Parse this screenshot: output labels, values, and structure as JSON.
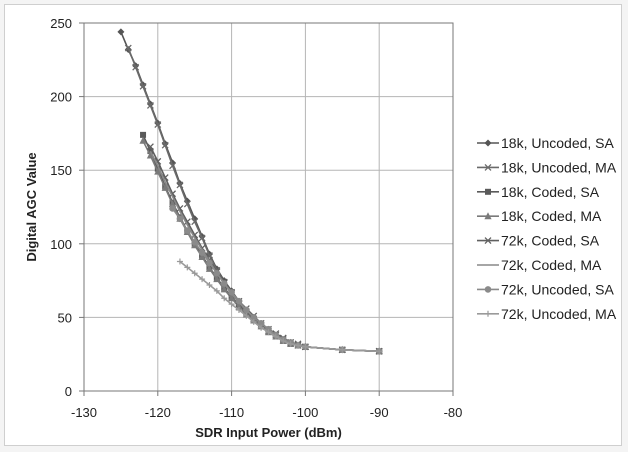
{
  "chart_data": {
    "type": "line",
    "title": "",
    "xlabel": "SDR Input Power (dBm)",
    "ylabel": "Digital AGC Value",
    "xlim": [
      -130,
      -80
    ],
    "ylim": [
      0,
      250
    ],
    "xticks": [
      -130,
      -120,
      -110,
      -100,
      -90,
      -80
    ],
    "yticks": [
      0,
      50,
      100,
      150,
      200,
      250
    ],
    "grid": true,
    "legend_position": "right",
    "series": [
      {
        "name": "18k, Uncoded, SA",
        "color": "#555555",
        "marker": "diamond",
        "x": [
          -125,
          -124,
          -123,
          -122,
          -121,
          -120,
          -119,
          -118,
          -117,
          -116,
          -115,
          -114,
          -113,
          -112,
          -111,
          -110,
          -109,
          -108,
          -107,
          -106,
          -105,
          -104,
          -103,
          -102,
          -101,
          -100,
          -95,
          -90
        ],
        "y": [
          244,
          232,
          221,
          208,
          195,
          182,
          168,
          155,
          141,
          129,
          117,
          105,
          93,
          83,
          75,
          68,
          61,
          55,
          50,
          45,
          41,
          38,
          35,
          33,
          31,
          30,
          28,
          27
        ]
      },
      {
        "name": "18k, Uncoded, MA",
        "color": "#6a6a6a",
        "marker": "x",
        "x": [
          -124,
          -123,
          -122,
          -121,
          -120,
          -119,
          -118,
          -117,
          -116,
          -115,
          -114,
          -113,
          -112,
          -111,
          -110,
          -109,
          -108,
          -107,
          -106,
          -105,
          -104,
          -103,
          -102,
          -101,
          -100,
          -95,
          -90
        ],
        "y": [
          233,
          220,
          207,
          194,
          181,
          167,
          153,
          140,
          127,
          115,
          104,
          92,
          82,
          74,
          67,
          60,
          54,
          49,
          45,
          41,
          38,
          35,
          33,
          31,
          30,
          28,
          27
        ]
      },
      {
        "name": "18k, Coded, SA",
        "color": "#5a5a5a",
        "marker": "square",
        "x": [
          -122,
          -121,
          -120,
          -119,
          -118,
          -117,
          -116,
          -115,
          -114,
          -113,
          -112,
          -111,
          -110,
          -109,
          -108,
          -107,
          -106,
          -105,
          -104,
          -103,
          -102,
          -101,
          -100,
          -95,
          -90
        ],
        "y": [
          174,
          163,
          151,
          139,
          128,
          118,
          109,
          100,
          92,
          84,
          77,
          70,
          64,
          58,
          53,
          48,
          44,
          40,
          37,
          34,
          32,
          31,
          30,
          28,
          27
        ]
      },
      {
        "name": "18k, Coded, MA",
        "color": "#7a7a7a",
        "marker": "triangle",
        "x": [
          -122,
          -121,
          -120,
          -119,
          -118,
          -117,
          -116,
          -115,
          -114,
          -113,
          -112,
          -111,
          -110,
          -109,
          -108,
          -107,
          -106,
          -105,
          -104,
          -103,
          -102,
          -101,
          -100,
          -95,
          -90
        ],
        "y": [
          170,
          160,
          149,
          138,
          127,
          117,
          108,
          99,
          91,
          83,
          76,
          69,
          63,
          57,
          52,
          48,
          44,
          40,
          37,
          34,
          32,
          31,
          30,
          28,
          27
        ]
      },
      {
        "name": "72k, Coded, SA",
        "color": "#606060",
        "marker": "x",
        "x": [
          -121,
          -120,
          -119,
          -118,
          -117,
          -116,
          -115,
          -114,
          -113,
          -112,
          -111,
          -110,
          -109,
          -108,
          -107,
          -106,
          -105,
          -104,
          -103,
          -102,
          -101,
          -100,
          -95,
          -90
        ],
        "y": [
          166,
          156,
          145,
          134,
          124,
          115,
          106,
          97,
          89,
          81,
          74,
          67,
          61,
          56,
          51,
          46,
          42,
          39,
          36,
          33,
          32,
          30,
          28,
          27
        ]
      },
      {
        "name": "72k, Coded, MA",
        "color": "#888888",
        "marker": "none",
        "x": [
          -121,
          -120,
          -119,
          -118,
          -117,
          -116,
          -115,
          -114,
          -113,
          -112,
          -111,
          -110,
          -109,
          -108,
          -107,
          -106,
          -105,
          -104,
          -103,
          -102,
          -101,
          -100,
          -95,
          -90
        ],
        "y": [
          163,
          153,
          142,
          132,
          122,
          113,
          104,
          96,
          88,
          80,
          73,
          66,
          60,
          55,
          50,
          46,
          42,
          38,
          35,
          33,
          31,
          30,
          28,
          27
        ]
      },
      {
        "name": "72k, Uncoded, SA",
        "color": "#8a8a8a",
        "marker": "circle",
        "x": [
          -118,
          -117,
          -116,
          -115,
          -114,
          -113,
          -112,
          -111,
          -110,
          -109,
          -108,
          -107,
          -106,
          -105,
          -104,
          -103,
          -102,
          -101,
          -100,
          -95,
          -90
        ],
        "y": [
          124,
          117,
          109,
          101,
          94,
          87,
          80,
          73,
          67,
          61,
          55,
          50,
          46,
          42,
          38,
          35,
          33,
          31,
          30,
          28,
          27
        ]
      },
      {
        "name": "72k, Uncoded, MA",
        "color": "#9a9a9a",
        "marker": "plus",
        "x": [
          -117,
          -116,
          -115,
          -114,
          -113,
          -112,
          -111,
          -110,
          -109,
          -108,
          -107,
          -106,
          -105,
          -104,
          -103,
          -102,
          -101,
          -100,
          -95,
          -90
        ],
        "y": [
          88,
          84,
          80,
          76,
          72,
          68,
          63,
          59,
          55,
          51,
          47,
          43,
          40,
          37,
          34,
          32,
          31,
          30,
          28,
          27
        ]
      }
    ]
  }
}
